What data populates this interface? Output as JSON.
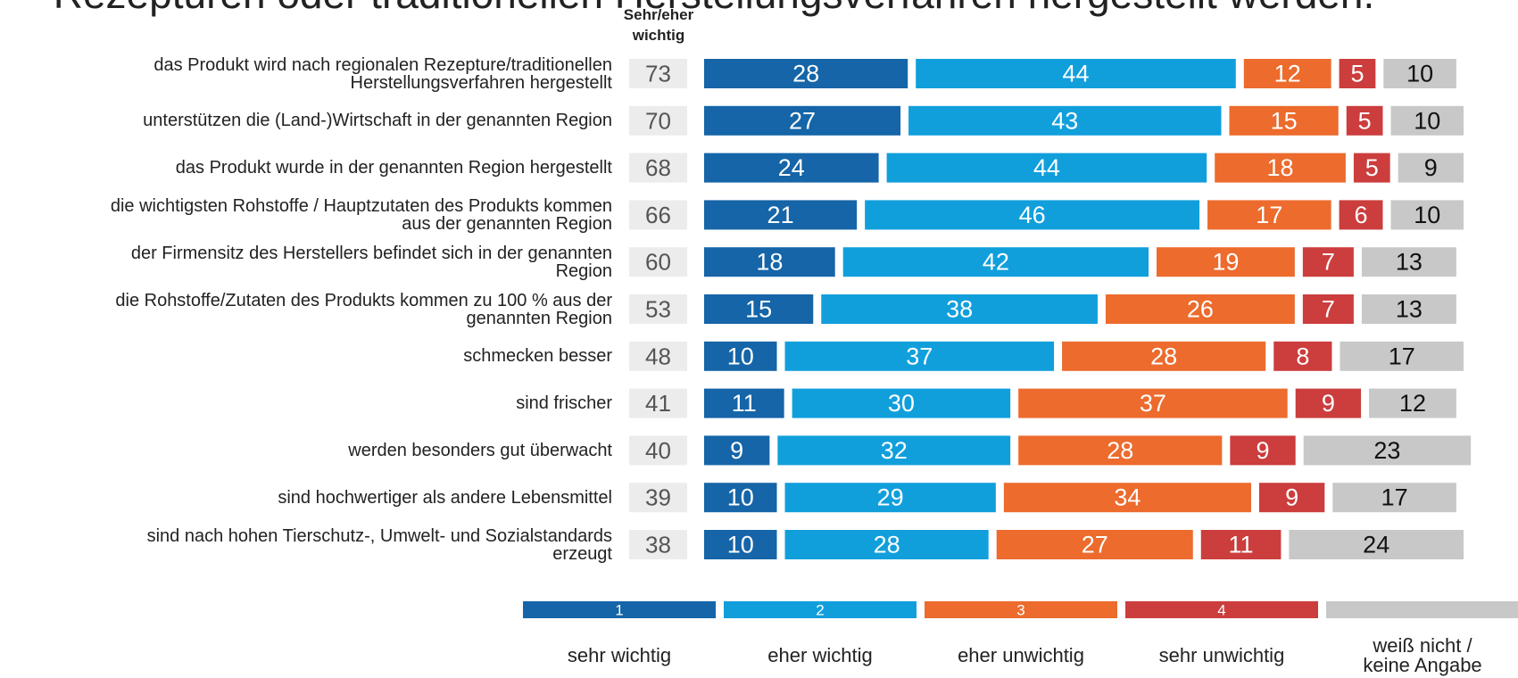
{
  "chart_data": {
    "type": "stacked-bar-horizontal",
    "title": "Rezepturen oder traditionellen Herstellungsverfahren hergestellt werden.",
    "summary_header": "Sehr/eher\nwichtig",
    "categories": [
      "das Produkt wird nach regionalen Rezepture/traditionellen\nHerstellungsverfahren hergestellt",
      "unterstützen die (Land-)Wirtschaft in der genannten Region",
      "das Produkt wurde in der genannten Region hergestellt",
      "die wichtigsten Rohstoffe / Hauptzutaten des Produkts kommen\naus der genannten Region",
      "der Firmensitz des Herstellers befindet sich in der genannten\nRegion",
      "die Rohstoffe/Zutaten des Produkts kommen zu 100 % aus der\ngenannten Region",
      "schmecken besser",
      "sind frischer",
      "werden besonders gut überwacht",
      "sind hochwertiger als andere Lebensmittel",
      "sind nach hohen Tierschutz-, Umwelt- und Sozialstandards\nerzeugt"
    ],
    "summary_values": [
      73,
      70,
      68,
      66,
      60,
      53,
      48,
      41,
      40,
      39,
      38
    ],
    "series": [
      {
        "name": "sehr wichtig",
        "code": "1",
        "color": "#1565a8",
        "text_color": "#ffffff",
        "values": [
          28,
          27,
          24,
          21,
          18,
          15,
          10,
          11,
          9,
          10,
          10
        ]
      },
      {
        "name": "eher wichtig",
        "code": "2",
        "color": "#119fdc",
        "text_color": "#ffffff",
        "values": [
          44,
          43,
          44,
          46,
          42,
          38,
          37,
          30,
          32,
          29,
          28
        ]
      },
      {
        "name": "eher unwichtig",
        "code": "3",
        "color": "#ec6b2d",
        "text_color": "#ffffff",
        "values": [
          12,
          15,
          18,
          17,
          19,
          26,
          28,
          37,
          28,
          34,
          27
        ]
      },
      {
        "name": "sehr unwichtig",
        "code": "4",
        "color": "#cc3d3d",
        "text_color": "#ffffff",
        "values": [
          5,
          5,
          5,
          6,
          7,
          7,
          8,
          9,
          9,
          9,
          11
        ]
      },
      {
        "name": "weiß nicht /\nkeine Angabe",
        "color": "#c8c8c8",
        "text_color": "#111111",
        "values": [
          10,
          10,
          9,
          10,
          13,
          13,
          17,
          12,
          23,
          17,
          24
        ]
      }
    ]
  }
}
